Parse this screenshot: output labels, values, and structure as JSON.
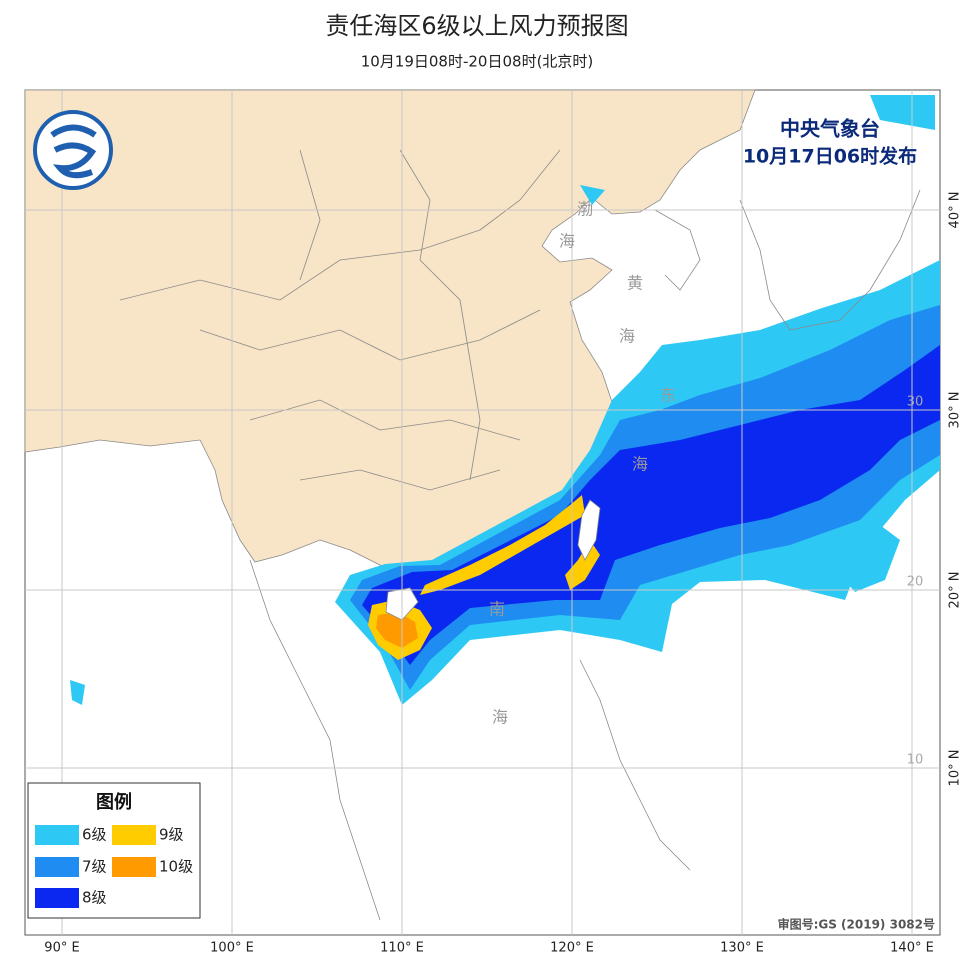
{
  "header": {
    "title": "责任海区6级以上风力预报图",
    "subtitle": "10月19日08时-20日08时(北京时)"
  },
  "issuer": {
    "agency": "中央气象台",
    "issued": "10月17日06时发布"
  },
  "legend": {
    "title": "图例",
    "items": [
      {
        "label": "6级",
        "color": "#2ec8f5"
      },
      {
        "label": "9级",
        "color": "#ffcc00"
      },
      {
        "label": "7级",
        "color": "#1e8cf0"
      },
      {
        "label": "10级",
        "color": "#ff9a00"
      },
      {
        "label": "8级",
        "color": "#0a28f0"
      }
    ]
  },
  "longitude_labels": [
    "90° E",
    "100° E",
    "110° E",
    "120° E",
    "130° E",
    "140° E"
  ],
  "latitude_labels": [
    "40° N",
    "30° N",
    "20° N",
    "10° N"
  ],
  "inner_latitude_labels": [
    "30",
    "20",
    "10"
  ],
  "sea_labels": [
    "渤",
    "海",
    "黄",
    "海",
    "东",
    "海",
    "南",
    "海"
  ],
  "footnote": "审图号:GS (2019) 3082号"
}
